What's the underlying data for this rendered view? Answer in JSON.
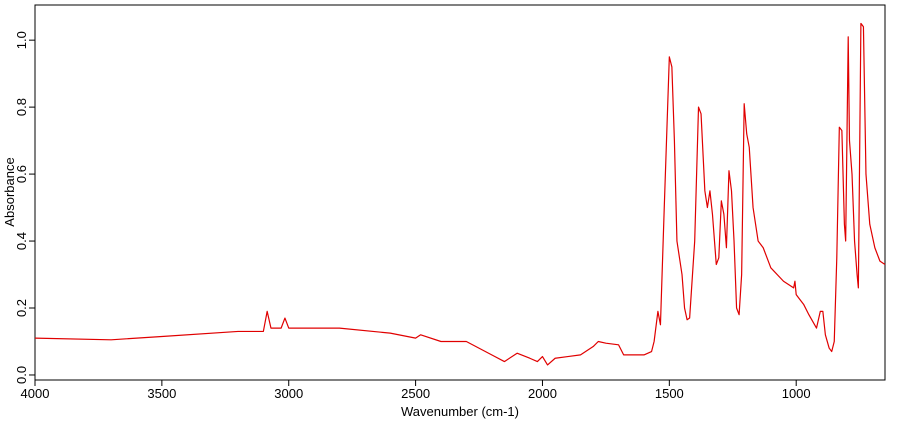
{
  "chart_data": {
    "type": "line",
    "xlabel": "Wavenumber (cm-1)",
    "ylabel": "Absorbance",
    "xlim": [
      4000,
      650
    ],
    "ylim": [
      -0.015,
      1.105
    ],
    "xticks": [
      4000,
      3500,
      3000,
      2500,
      2000,
      1500,
      1000
    ],
    "yticks": [
      {
        "value": 0,
        "label": "0.0"
      },
      0.2,
      0.4,
      0.6,
      0.8,
      {
        "value": 1,
        "label": "1.0"
      }
    ],
    "grid": false,
    "series": [
      {
        "color": "#e00000",
        "x": [
          4000,
          3700,
          3500,
          3200,
          3100,
          3085,
          3070,
          3030,
          3015,
          3000,
          2800,
          2600,
          2500,
          2480,
          2400,
          2300,
          2200,
          2150,
          2100,
          2050,
          2020,
          2000,
          1980,
          1950,
          1900,
          1850,
          1800,
          1780,
          1750,
          1700,
          1680,
          1650,
          1600,
          1570,
          1560,
          1545,
          1535,
          1520,
          1500,
          1490,
          1480,
          1470,
          1460,
          1450,
          1440,
          1430,
          1420,
          1400,
          1385,
          1375,
          1360,
          1350,
          1340,
          1330,
          1315,
          1305,
          1295,
          1285,
          1275,
          1265,
          1255,
          1245,
          1235,
          1225,
          1215,
          1205,
          1195,
          1185,
          1170,
          1150,
          1140,
          1130,
          1100,
          1050,
          1010,
          1005,
          1000,
          990,
          970,
          950,
          920,
          905,
          895,
          885,
          870,
          860,
          850,
          840,
          830,
          820,
          810,
          805,
          795,
          790,
          780,
          770,
          760,
          755,
          745,
          735,
          725,
          710,
          690,
          670,
          650
        ],
        "values": [
          0.11,
          0.105,
          0.115,
          0.13,
          0.13,
          0.19,
          0.14,
          0.14,
          0.17,
          0.14,
          0.14,
          0.125,
          0.11,
          0.12,
          0.1,
          0.1,
          0.06,
          0.04,
          0.065,
          0.05,
          0.04,
          0.055,
          0.03,
          0.05,
          0.055,
          0.06,
          0.085,
          0.1,
          0.095,
          0.09,
          0.06,
          0.06,
          0.06,
          0.07,
          0.1,
          0.19,
          0.15,
          0.5,
          0.95,
          0.92,
          0.7,
          0.4,
          0.35,
          0.3,
          0.2,
          0.165,
          0.17,
          0.4,
          0.8,
          0.78,
          0.55,
          0.5,
          0.55,
          0.48,
          0.33,
          0.35,
          0.52,
          0.48,
          0.38,
          0.61,
          0.55,
          0.4,
          0.2,
          0.18,
          0.3,
          0.81,
          0.72,
          0.68,
          0.5,
          0.4,
          0.39,
          0.38,
          0.32,
          0.28,
          0.26,
          0.28,
          0.24,
          0.23,
          0.21,
          0.18,
          0.14,
          0.19,
          0.19,
          0.12,
          0.08,
          0.07,
          0.1,
          0.35,
          0.74,
          0.73,
          0.45,
          0.4,
          1.01,
          0.7,
          0.6,
          0.4,
          0.3,
          0.26,
          1.05,
          1.04,
          0.6,
          0.45,
          0.38,
          0.34,
          0.33
        ]
      }
    ]
  }
}
